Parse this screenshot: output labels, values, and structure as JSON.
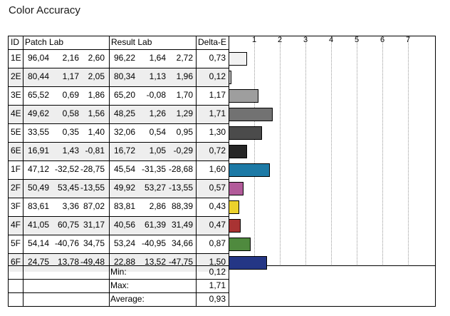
{
  "title": "Color Accuracy",
  "headers": {
    "id": "ID",
    "patch": "Patch Lab",
    "result": "Result Lab",
    "delta": "Delta-E"
  },
  "chart_data": {
    "type": "bar",
    "orientation": "horizontal",
    "xlim": [
      0,
      7.7
    ],
    "ticks": [
      "1",
      "2",
      "3",
      "4",
      "5",
      "6",
      "7"
    ],
    "rows": [
      {
        "id": "1E",
        "patch": [
          "96,04",
          "2,16",
          "2,60"
        ],
        "result": [
          "96,22",
          "1,64",
          "2,72"
        ],
        "delta": "0,73",
        "value": 0.73,
        "color": "#f2f2f2"
      },
      {
        "id": "2E",
        "patch": [
          "80,44",
          "1,17",
          "2,05"
        ],
        "result": [
          "80,34",
          "1,13",
          "1,96"
        ],
        "delta": "0,12",
        "value": 0.12,
        "color": "#c9c9c9"
      },
      {
        "id": "3E",
        "patch": [
          "65,52",
          "0,69",
          "1,86"
        ],
        "result": [
          "65,20",
          "-0,08",
          "1,70"
        ],
        "delta": "1,17",
        "value": 1.17,
        "color": "#9e9e9e"
      },
      {
        "id": "4E",
        "patch": [
          "49,62",
          "0,58",
          "1,56"
        ],
        "result": [
          "48,25",
          "1,26",
          "1,29"
        ],
        "delta": "1,71",
        "value": 1.71,
        "color": "#727272"
      },
      {
        "id": "5E",
        "patch": [
          "33,55",
          "0,35",
          "1,40"
        ],
        "result": [
          "32,06",
          "0,54",
          "0,95"
        ],
        "delta": "1,30",
        "value": 1.3,
        "color": "#4b4b4b"
      },
      {
        "id": "6E",
        "patch": [
          "16,91",
          "1,43",
          "-0,81"
        ],
        "result": [
          "16,72",
          "1,05",
          "-0,29"
        ],
        "delta": "0,72",
        "value": 0.72,
        "color": "#262626"
      },
      {
        "id": "1F",
        "patch": [
          "47,12",
          "-32,52",
          "-28,75"
        ],
        "result": [
          "45,54",
          "-31,35",
          "-28,68"
        ],
        "delta": "1,60",
        "value": 1.6,
        "color": "#1d7aa6"
      },
      {
        "id": "2F",
        "patch": [
          "50,49",
          "53,45",
          "-13,55"
        ],
        "result": [
          "49,92",
          "53,27",
          "-13,55"
        ],
        "delta": "0,57",
        "value": 0.57,
        "color": "#b25b9a"
      },
      {
        "id": "3F",
        "patch": [
          "83,61",
          "3,36",
          "87,02"
        ],
        "result": [
          "83,81",
          "2,86",
          "88,39"
        ],
        "delta": "0,43",
        "value": 0.43,
        "color": "#ecd12c"
      },
      {
        "id": "4F",
        "patch": [
          "41,05",
          "60,75",
          "31,17"
        ],
        "result": [
          "40,56",
          "61,39",
          "31,49"
        ],
        "delta": "0,47",
        "value": 0.47,
        "color": "#a93333"
      },
      {
        "id": "5F",
        "patch": [
          "54,14",
          "-40,76",
          "34,75"
        ],
        "result": [
          "53,24",
          "-40,95",
          "34,66"
        ],
        "delta": "0,87",
        "value": 0.87,
        "color": "#4f8a3e"
      },
      {
        "id": "6F",
        "patch": [
          "24,75",
          "13,78",
          "-49,48"
        ],
        "result": [
          "22,88",
          "13,52",
          "-47,75"
        ],
        "delta": "1,50",
        "value": 1.5,
        "color": "#243685"
      }
    ]
  },
  "summary": [
    {
      "label": "Min:",
      "value": "0,12"
    },
    {
      "label": "Max:",
      "value": "1,71"
    },
    {
      "label": "Average:",
      "value": "0,93"
    }
  ]
}
